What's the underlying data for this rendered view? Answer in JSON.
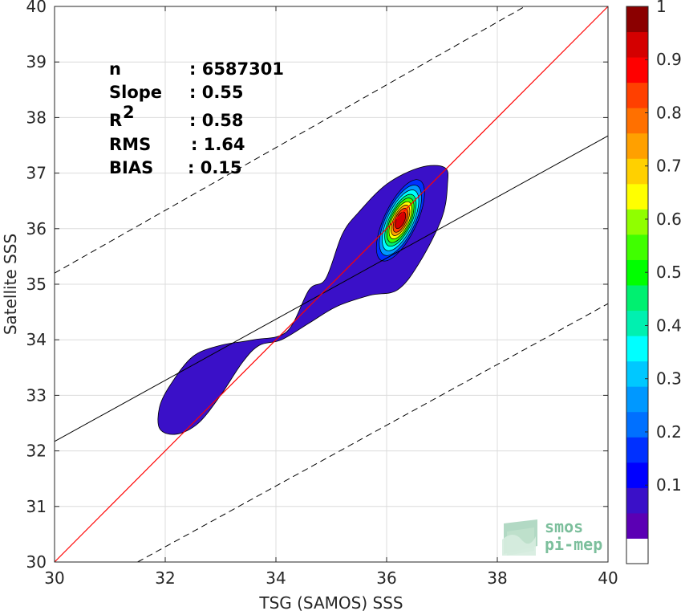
{
  "chart_data": {
    "type": "heatmap",
    "subtype": "density-contour scatter comparison",
    "xlabel": "TSG (SAMOS) SSS",
    "ylabel": "Satellite SSS",
    "xlim": [
      30,
      40
    ],
    "ylim": [
      30,
      40
    ],
    "xticks": [
      "30",
      "32",
      "34",
      "36",
      "38",
      "40"
    ],
    "yticks": [
      "30",
      "31",
      "32",
      "33",
      "34",
      "35",
      "36",
      "37",
      "38",
      "39",
      "40"
    ],
    "grid": true,
    "stats": [
      {
        "label": "n",
        "value": ": 6587301"
      },
      {
        "label": "Slope",
        "value": ": 0.55"
      },
      {
        "label": "R",
        "sup": "2",
        "value": ": 0.58"
      },
      {
        "label": "RMS",
        "value": ": 1.64"
      },
      {
        "label": "BIAS",
        "value": ": 0.15"
      }
    ],
    "lines": {
      "one_to_one": {
        "color": "#ff0000",
        "points": [
          [
            30,
            30
          ],
          [
            40,
            40
          ]
        ]
      },
      "regression": {
        "color": "#000000",
        "slope": 0.55,
        "points": [
          [
            30,
            32.17
          ],
          [
            40,
            37.67
          ]
        ]
      },
      "upper_bound": {
        "color": "#000000",
        "dash": true,
        "points": [
          [
            30,
            35.2
          ],
          [
            38.5,
            40
          ]
        ]
      },
      "lower_bound": {
        "color": "#000000",
        "dash": true,
        "points": [
          [
            31.5,
            30
          ],
          [
            40,
            34.65
          ]
        ]
      }
    },
    "density_levels": [
      0.05,
      0.15,
      0.25,
      0.35,
      0.45,
      0.55,
      0.65,
      0.75,
      0.85,
      0.95
    ],
    "density_peak": {
      "x": 36.25,
      "y": 36.15,
      "value": 1.0
    },
    "colorbar": {
      "ticks": [
        "0.1",
        "0.2",
        "0.3",
        "0.4",
        "0.5",
        "0.6",
        "0.7",
        "0.8",
        "0.9",
        "1"
      ],
      "tick_values": [
        0.1,
        0.2,
        0.3,
        0.4,
        0.5,
        0.6,
        0.7,
        0.8,
        0.9,
        1.0
      ],
      "colors": [
        "#ffffff",
        "#5b00b4",
        "#3a10c8",
        "#0000ff",
        "#0030ff",
        "#0070ff",
        "#0098ff",
        "#00c8ff",
        "#00ffff",
        "#00f0b0",
        "#00f070",
        "#00ff00",
        "#40ff00",
        "#90ff00",
        "#ffff00",
        "#ffd000",
        "#ffa000",
        "#ff7000",
        "#ff4000",
        "#ff0000",
        "#d40000",
        "#8b0000"
      ]
    }
  },
  "logo": {
    "line1": "smos",
    "line2": "pi-mep"
  }
}
